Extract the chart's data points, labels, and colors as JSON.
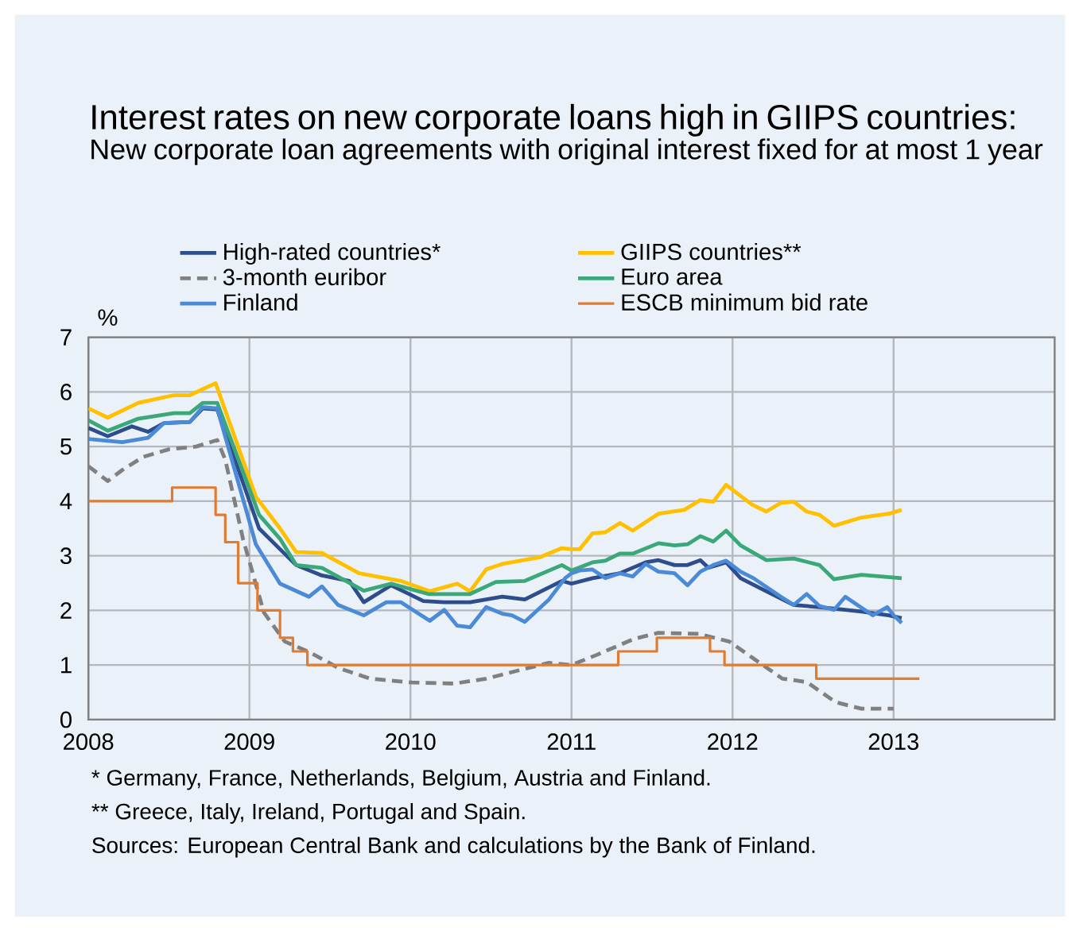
{
  "chart_data": {
    "type": "line",
    "title": "Interest rates on new corporate loans high in GIIPS countries:",
    "subtitle": "New corporate loan agreements with original interest fixed for at most 1 year",
    "ylabel": "%",
    "xlim": [
      2008,
      2014
    ],
    "xticks": [
      2008,
      2009,
      2010,
      2011,
      2012,
      2013
    ],
    "ylim": [
      0,
      7
    ],
    "yticks": [
      0,
      1,
      2,
      3,
      4,
      5,
      6,
      7
    ],
    "grid": true,
    "legend": "top",
    "series": [
      {
        "name": "High-rated countries*",
        "color": "#2e4d8c",
        "x": [
          2008.0,
          2008.125,
          2008.272,
          2008.37,
          2008.469,
          2008.633,
          2008.715,
          2008.797,
          2009.059,
          2009.19,
          2009.289,
          2009.452,
          2009.616,
          2009.715,
          2009.879,
          2010.075,
          2010.207,
          2010.37,
          2010.567,
          2010.715,
          2010.944,
          2011.0,
          2011.131,
          2011.295,
          2011.459,
          2011.541,
          2011.639,
          2011.721,
          2011.803,
          2011.852,
          2011.961,
          2012.049,
          2012.213,
          2012.377,
          2012.541,
          2012.639,
          2012.803,
          2012.967,
          2013.049
        ],
        "values": [
          5.34,
          5.19,
          5.37,
          5.27,
          5.43,
          5.45,
          5.7,
          5.68,
          3.5,
          3.12,
          2.83,
          2.64,
          2.54,
          2.15,
          2.46,
          2.17,
          2.15,
          2.15,
          2.25,
          2.2,
          2.54,
          2.49,
          2.59,
          2.68,
          2.88,
          2.92,
          2.83,
          2.83,
          2.92,
          2.78,
          2.88,
          2.59,
          2.35,
          2.1,
          2.06,
          2.03,
          1.98,
          1.91,
          1.86
        ]
      },
      {
        "name": "GIIPS countries**",
        "color": "#ffc000",
        "x": [
          2008.0,
          2008.125,
          2008.305,
          2008.534,
          2008.633,
          2008.787,
          2009.043,
          2009.19,
          2009.289,
          2009.452,
          2009.682,
          2009.944,
          2010.125,
          2010.289,
          2010.37,
          2010.469,
          2010.567,
          2010.797,
          2010.944,
          2011.0,
          2011.049,
          2011.131,
          2011.213,
          2011.295,
          2011.377,
          2011.541,
          2011.705,
          2011.803,
          2011.885,
          2011.961,
          2012.115,
          2012.213,
          2012.295,
          2012.377,
          2012.459,
          2012.541,
          2012.63,
          2012.803,
          2012.967,
          2013.049
        ],
        "values": [
          5.7,
          5.53,
          5.8,
          5.94,
          5.94,
          6.16,
          4.08,
          3.5,
          3.07,
          3.05,
          2.68,
          2.54,
          2.35,
          2.49,
          2.35,
          2.75,
          2.85,
          2.97,
          3.14,
          3.12,
          3.12,
          3.41,
          3.43,
          3.6,
          3.46,
          3.77,
          3.84,
          4.02,
          3.99,
          4.3,
          3.94,
          3.81,
          3.97,
          3.99,
          3.81,
          3.75,
          3.55,
          3.7,
          3.77,
          3.84
        ]
      },
      {
        "name": "3-month euribor",
        "color": "#808080",
        "line_style": "dashed",
        "x": [
          2008.0,
          2008.125,
          2008.207,
          2008.338,
          2008.502,
          2008.666,
          2008.797,
          2008.846,
          2008.961,
          2009.092,
          2009.223,
          2009.37,
          2009.551,
          2009.748,
          2010.01,
          2010.272,
          2010.469,
          2010.666,
          2010.862,
          2011.0,
          2011.164,
          2011.393,
          2011.541,
          2011.787,
          2011.984,
          2012.115,
          2012.311,
          2012.459,
          2012.639,
          2012.803,
          2013.0
        ],
        "values": [
          4.64,
          4.37,
          4.57,
          4.81,
          4.95,
          5.0,
          5.12,
          4.76,
          3.31,
          1.96,
          1.43,
          1.24,
          0.95,
          0.75,
          0.68,
          0.66,
          0.75,
          0.9,
          1.04,
          1.0,
          1.19,
          1.48,
          1.59,
          1.57,
          1.43,
          1.14,
          0.75,
          0.69,
          0.32,
          0.2,
          0.2
        ]
      },
      {
        "name": "Euro area",
        "color": "#3aa878",
        "x": [
          2008.0,
          2008.125,
          2008.305,
          2008.534,
          2008.633,
          2008.715,
          2008.797,
          2009.059,
          2009.19,
          2009.289,
          2009.452,
          2009.715,
          2009.879,
          2010.108,
          2010.37,
          2010.534,
          2010.715,
          2010.944,
          2011.0,
          2011.131,
          2011.213,
          2011.295,
          2011.377,
          2011.541,
          2011.639,
          2011.721,
          2011.803,
          2011.885,
          2011.961,
          2012.049,
          2012.213,
          2012.377,
          2012.541,
          2012.63,
          2012.803,
          2013.049
        ],
        "values": [
          5.48,
          5.29,
          5.51,
          5.61,
          5.61,
          5.8,
          5.8,
          3.75,
          3.31,
          2.83,
          2.78,
          2.36,
          2.49,
          2.3,
          2.3,
          2.52,
          2.54,
          2.83,
          2.73,
          2.88,
          2.91,
          3.04,
          3.04,
          3.23,
          3.19,
          3.21,
          3.36,
          3.26,
          3.46,
          3.19,
          2.92,
          2.95,
          2.83,
          2.57,
          2.65,
          2.59
        ]
      },
      {
        "name": "Finland",
        "color": "#4a8ad6",
        "x": [
          2008.0,
          2008.207,
          2008.37,
          2008.469,
          2008.633,
          2008.715,
          2008.797,
          2009.043,
          2009.19,
          2009.37,
          2009.452,
          2009.551,
          2009.715,
          2009.846,
          2009.944,
          2010.125,
          2010.207,
          2010.289,
          2010.37,
          2010.469,
          2010.567,
          2010.633,
          2010.715,
          2010.862,
          2010.961,
          2011.0,
          2011.049,
          2011.131,
          2011.213,
          2011.295,
          2011.377,
          2011.459,
          2011.541,
          2011.639,
          2011.721,
          2011.803,
          2011.885,
          2011.961,
          2012.049,
          2012.131,
          2012.295,
          2012.377,
          2012.459,
          2012.541,
          2012.63,
          2012.705,
          2012.869,
          2012.957,
          2013.0,
          2013.049
        ],
        "values": [
          5.14,
          5.08,
          5.16,
          5.43,
          5.45,
          5.72,
          5.7,
          3.21,
          2.49,
          2.25,
          2.44,
          2.1,
          1.91,
          2.15,
          2.15,
          1.81,
          2.01,
          1.72,
          1.69,
          2.06,
          1.94,
          1.91,
          1.79,
          2.2,
          2.59,
          2.68,
          2.73,
          2.75,
          2.59,
          2.68,
          2.62,
          2.85,
          2.71,
          2.68,
          2.46,
          2.71,
          2.83,
          2.91,
          2.71,
          2.59,
          2.25,
          2.1,
          2.3,
          2.08,
          2.01,
          2.25,
          1.91,
          2.06,
          1.91,
          1.77
        ]
      },
      {
        "name": "ESCB minimum bid rate",
        "color": "#e07b30",
        "type": "step",
        "x": [
          2008.0,
          2008.52,
          2008.787,
          2008.846,
          2008.93,
          2009.05,
          2009.19,
          2009.27,
          2009.36,
          2011.29,
          2011.53,
          2011.86,
          2011.95,
          2012.52,
          2013.16
        ],
        "values": [
          4.0,
          4.25,
          3.75,
          3.25,
          2.5,
          2.0,
          1.5,
          1.25,
          1.0,
          1.25,
          1.5,
          1.25,
          1.0,
          0.75,
          0.75
        ]
      }
    ],
    "annotations": [
      "*   Germany, France, Netherlands, Belgium, Austria and Finland.",
      "**  Greece, Italy, Ireland, Portugal and Spain.",
      "Sources: European Central Bank and calculations by the Bank of Finland."
    ]
  }
}
